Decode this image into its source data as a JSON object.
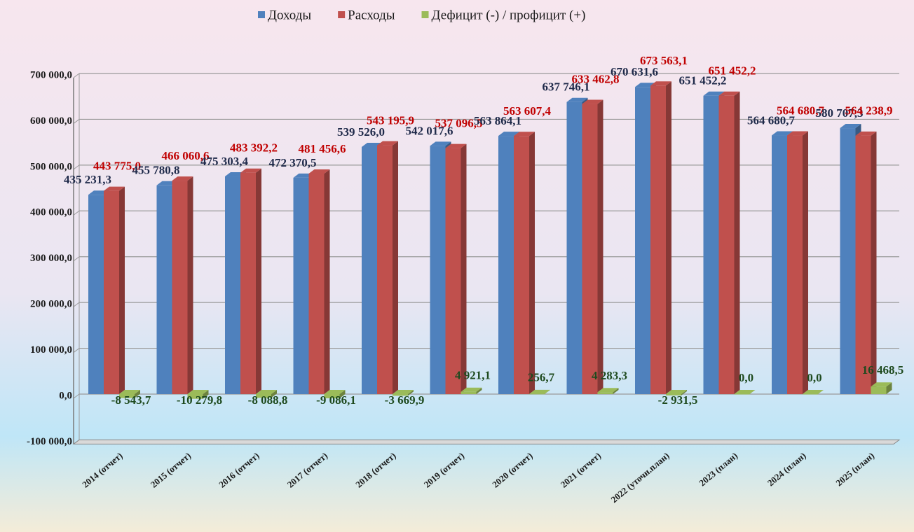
{
  "chart_data": {
    "type": "bar",
    "categories": [
      "2014 (отчет)",
      "2015 (отчет)",
      "2016 (отчет)",
      "2017 (отчет)",
      "2018 (отчет)",
      "2019 (отчет)",
      "2020 (отчет)",
      "2021 (отчет)",
      "2022 (уточн.план)",
      "2023 (план)",
      "2024 (план)",
      "2025   (план)"
    ],
    "series": [
      {
        "name": "Доходы",
        "color": "#4f81bd",
        "label_color": "#1f2a4a",
        "values": [
          435231.3,
          455780.8,
          475303.4,
          472370.5,
          539526.0,
          542017.6,
          563864.1,
          637746.1,
          670631.6,
          651452.2,
          564680.7,
          580707.3
        ],
        "value_labels": [
          "435 231,3",
          "455 780,8",
          "475 303,4",
          "472 370,5",
          "539 526,0",
          "542 017,6",
          "563 864,1",
          "637 746,1",
          "670 631,6",
          "651 452,2",
          "564 680,7",
          "580 707,3"
        ]
      },
      {
        "name": "Расходы",
        "color": "#c0504d",
        "label_color": "#c00000",
        "values": [
          443775.0,
          466060.6,
          483392.2,
          481456.6,
          543195.9,
          537096.5,
          563607.4,
          633462.8,
          673563.1,
          651452.2,
          564680.7,
          564238.9
        ],
        "value_labels": [
          "443 775,0",
          "466 060,6",
          "483 392,2",
          "481 456,6",
          "543 195,9",
          "537 096,5",
          "563 607,4",
          "633 462,8",
          "673 563,1",
          "651 452,2",
          "564 680,7",
          "564 238,9"
        ]
      },
      {
        "name": "Дефицит (-) / профицит (+)",
        "color": "#9bbb59",
        "label_color": "#1e4a1e",
        "values": [
          -8543.7,
          -10279.8,
          -8088.8,
          -9086.1,
          -3669.9,
          4921.1,
          256.7,
          4283.3,
          -2931.5,
          0.0,
          0.0,
          16468.5
        ],
        "value_labels": [
          "-8 543,7",
          "-10 279,8",
          "-8 088,8",
          "-9 086,1",
          "-3 669,9",
          "4 921,1",
          "256,7",
          "4 283,3",
          "-2 931,5",
          "0,0",
          "0,0",
          "16 468,5"
        ]
      }
    ],
    "ylim": [
      -100000,
      700000
    ],
    "yticks": [
      {
        "value": -100000,
        "label": "-100 000,0"
      },
      {
        "value": 0,
        "label": "0,0"
      },
      {
        "value": 100000,
        "label": "100 000,0"
      },
      {
        "value": 200000,
        "label": "200 000,0"
      },
      {
        "value": 300000,
        "label": "300 000,0"
      },
      {
        "value": 400000,
        "label": "400 000,0"
      },
      {
        "value": 500000,
        "label": "500 000,0"
      },
      {
        "value": 600000,
        "label": "600 000,0"
      },
      {
        "value": 700000,
        "label": "700 000,0"
      }
    ],
    "grid": true,
    "legend": "top"
  }
}
